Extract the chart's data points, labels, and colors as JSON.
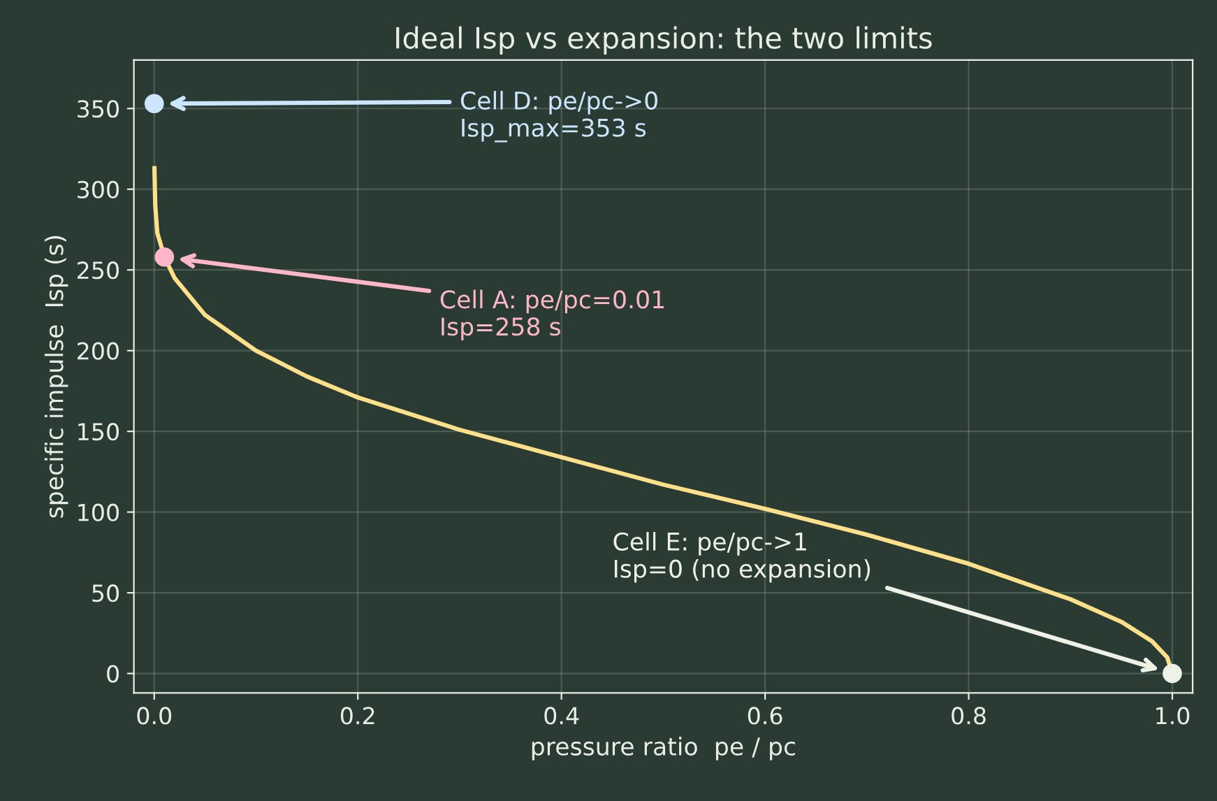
{
  "chart_data": {
    "type": "line",
    "title": "Ideal Isp vs expansion: the two limits",
    "xlabel": "pressure ratio  pe / pc",
    "ylabel": "specific impulse  Isp (s)",
    "series": [
      {
        "color": "#ffe08a",
        "x": [
          0.0002,
          0.001,
          0.003,
          0.01,
          0.02,
          0.05,
          0.1,
          0.15,
          0.2,
          0.3,
          0.4,
          0.5,
          0.6,
          0.7,
          0.8,
          0.9,
          0.95,
          0.98,
          0.995,
          1.0
        ],
        "values": [
          313,
          290,
          273,
          258,
          245,
          222,
          200,
          184,
          171,
          151,
          134,
          117,
          102,
          86,
          68,
          46,
          32,
          20,
          10,
          0
        ]
      },
      {
        "type": "scatter",
        "marker": "circle",
        "colors": [
          "#cce6ff",
          "#ffb6c8",
          "#eef2e6"
        ],
        "x": [
          0,
          0.01,
          1.0
        ],
        "values": [
          353,
          258,
          0
        ]
      }
    ],
    "annotations": [
      "Cell D: pe/pc->0\nIsp_max=353 s",
      "Cell A: pe/pc=0.01\nIsp=258 s",
      "Cell E: pe/pc->1\nIsp=0 (no expansion)"
    ],
    "xlim": [
      -0.02,
      1.02
    ],
    "ylim": [
      -12,
      380
    ],
    "xticks": [
      {
        "value": 0,
        "label": "0.0"
      },
      0.2,
      0.4,
      0.6,
      0.8,
      {
        "value": 1,
        "label": "1.0"
      }
    ],
    "yticks": [
      0,
      50,
      100,
      150,
      200,
      250,
      300,
      350
    ],
    "grid": true
  }
}
